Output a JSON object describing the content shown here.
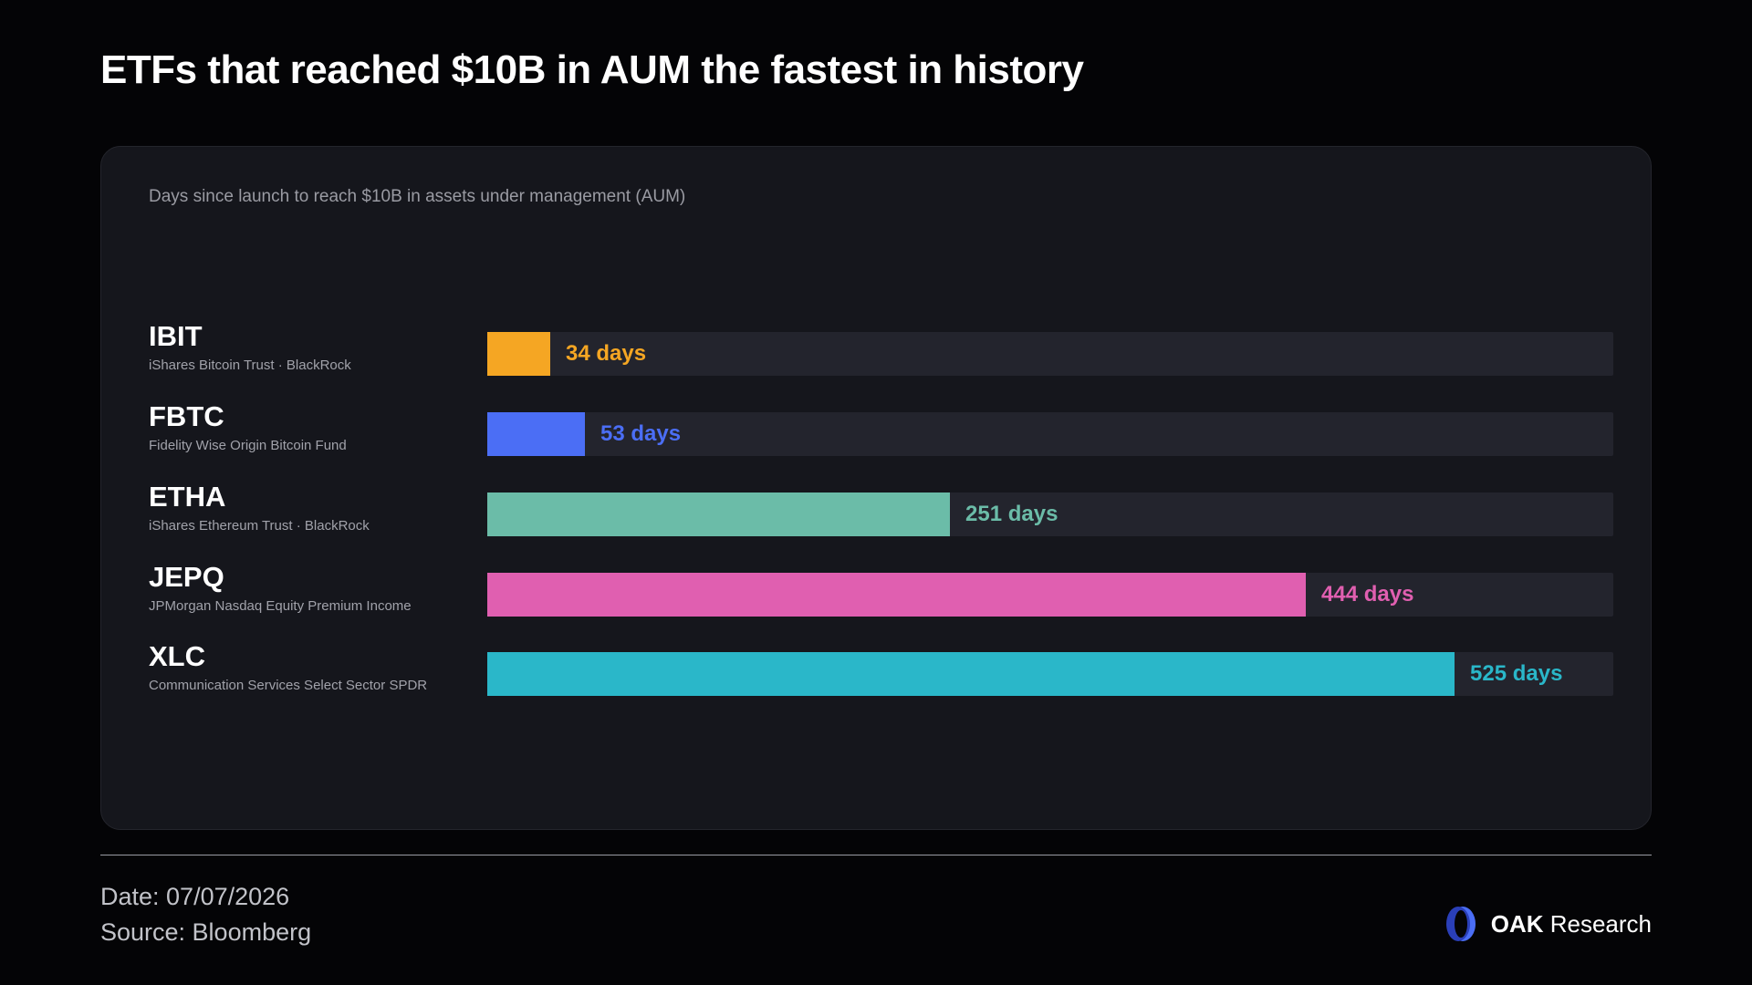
{
  "header": {
    "title": "ETFs that reached $10B in AUM the fastest in history"
  },
  "chart_data": {
    "type": "bar",
    "orientation": "horizontal",
    "subtitle": "Days since launch to reach $10B in assets under management (AUM)",
    "categories": [
      "IBIT",
      "FBTC",
      "ETHA",
      "JEPQ",
      "XLC"
    ],
    "descriptions": [
      "iShares Bitcoin Trust · BlackRock",
      "Fidelity Wise Origin Bitcoin Fund",
      "iShares Ethereum Trust · BlackRock",
      "JPMorgan Nasdaq Equity Premium Income",
      "Communication Services Select Sector SPDR"
    ],
    "values": [
      34,
      53,
      251,
      444,
      525
    ],
    "value_labels": [
      "34 days",
      "53 days",
      "251 days",
      "444 days",
      "525 days"
    ],
    "colors": [
      "#f5a623",
      "#4b6ef5",
      "#6bbca8",
      "#e05fb0",
      "#2ab7c9"
    ],
    "xlim": [
      0,
      611
    ],
    "legend": "none",
    "grid": false
  },
  "footer": {
    "date": "Date: 07/07/2026",
    "source": "Source: Bloomberg",
    "brand_bold": "OAK",
    "brand_rest": " Research",
    "logo_icon": "oak-logo-icon",
    "logo_color": "#4b6ef5"
  }
}
